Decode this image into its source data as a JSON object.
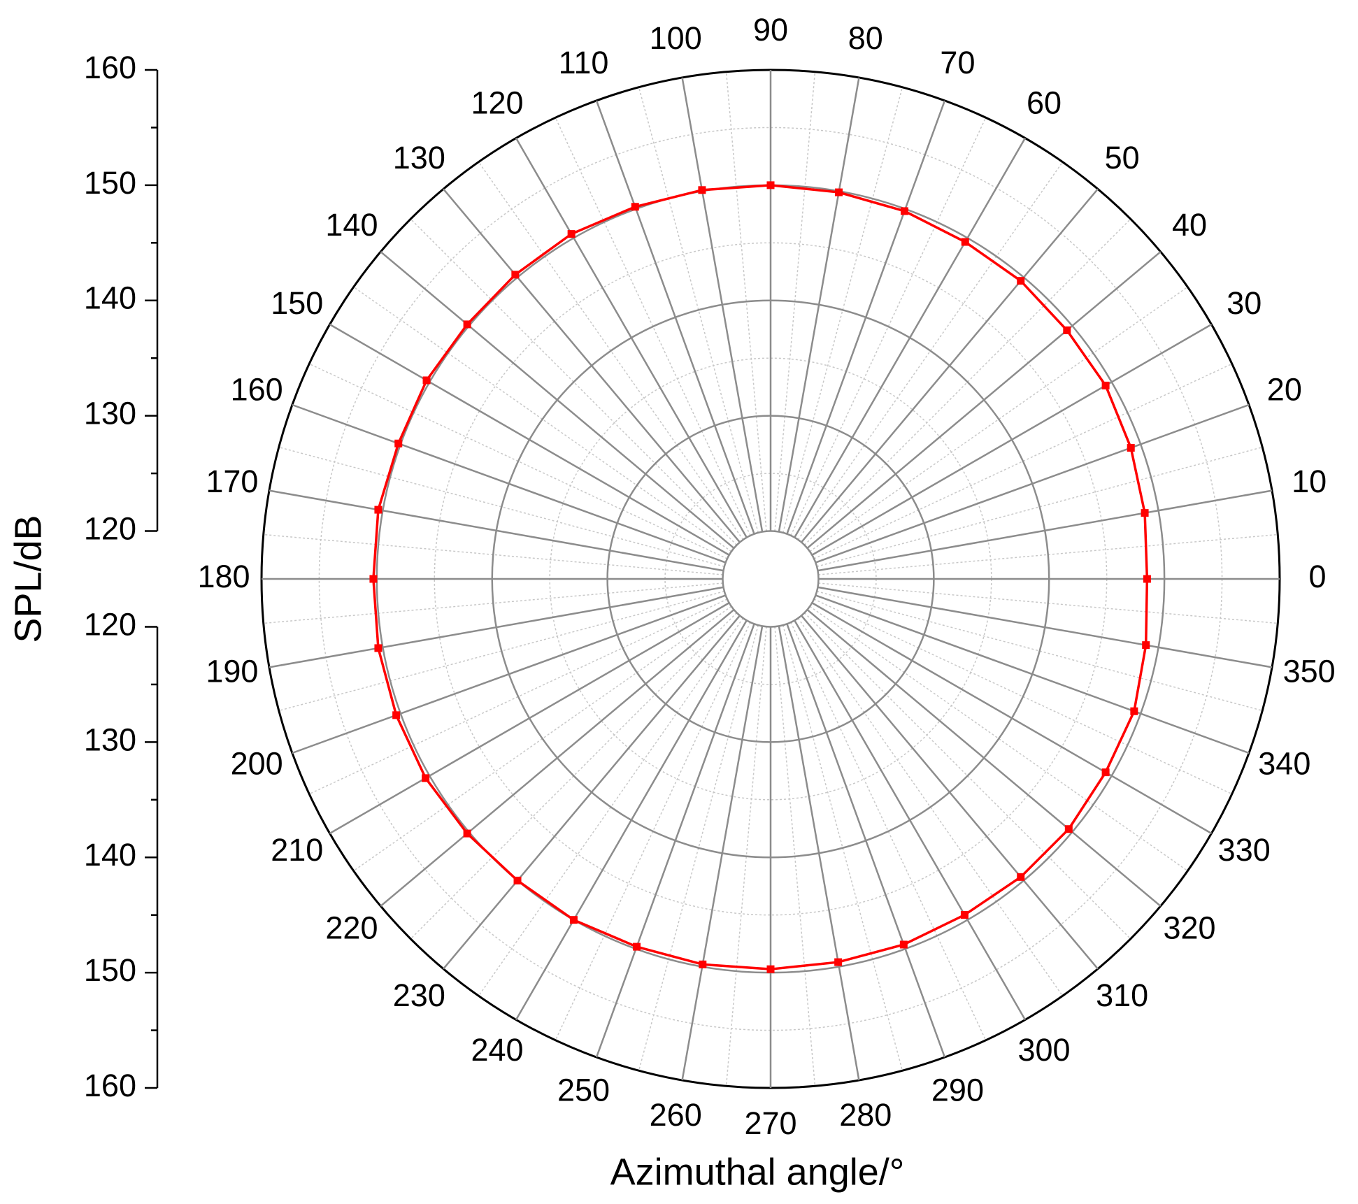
{
  "chart_data": {
    "type": "polar",
    "ylabel": "SPL/dB",
    "xlabel": "Azimuthal angle/°",
    "theta": [
      0,
      10,
      20,
      30,
      40,
      50,
      60,
      70,
      80,
      90,
      100,
      110,
      120,
      130,
      140,
      150,
      160,
      170,
      180,
      190,
      200,
      210,
      220,
      230,
      240,
      250,
      260,
      270,
      280,
      290,
      300,
      310,
      320,
      330,
      340,
      350
    ],
    "values": [
      148.5,
      148.8,
      149.1,
      149.4,
      149.4,
      149.6,
      149.6,
      149.8,
      149.9,
      150.0,
      150.1,
      150.2,
      150.4,
      150.3,
      150.2,
      150.3,
      150.2,
      150.4,
      150.3,
      150.4,
      150.4,
      150.4,
      150.2,
      150.0,
      150.0,
      149.8,
      149.8,
      149.7,
      149.6,
      149.6,
      149.5,
      149.6,
      149.6,
      149.4,
      149.4,
      148.9
    ],
    "color": "#ff0000",
    "rlim": [
      120,
      160
    ],
    "rticks": [
      120,
      130,
      140,
      150,
      160
    ],
    "thetaticks": [
      0,
      10,
      20,
      30,
      40,
      50,
      60,
      70,
      80,
      90,
      100,
      110,
      120,
      130,
      140,
      150,
      160,
      170,
      180,
      190,
      200,
      210,
      220,
      230,
      240,
      250,
      260,
      270,
      280,
      290,
      300,
      310,
      320,
      330,
      340,
      350
    ],
    "grid": true
  }
}
